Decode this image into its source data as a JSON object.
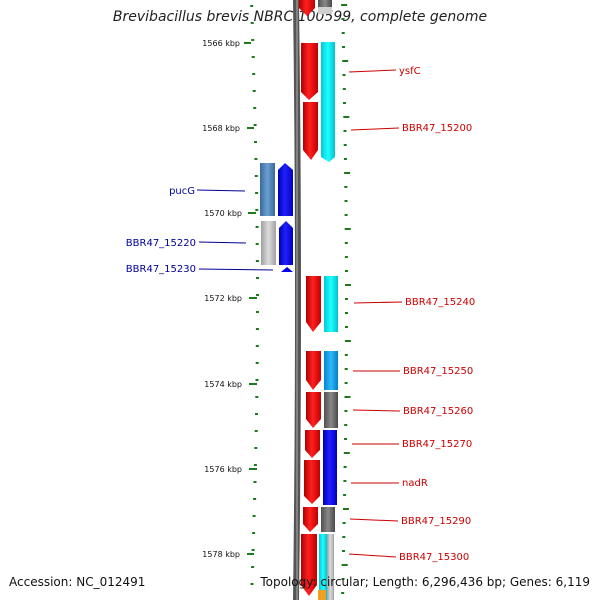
{
  "title": "Brevibacillus brevis NBRC 100599, complete genome",
  "accession": "Accession: NC_012491",
  "summary": "Topology: circular; Length: 6,296,436 bp; Genes: 6,119",
  "kbp_ticks": [
    "1566 kbp",
    "1568 kbp",
    "1570 kbp",
    "1572 kbp",
    "1574 kbp",
    "1576 kbp",
    "1578 kbp"
  ],
  "colors": {
    "forward": "#e8000a",
    "reverse": "#0000f0",
    "label_forward": "#cc0000",
    "label_reverse": "#000099",
    "backbone": "#777777",
    "tick": "#1b7a1b"
  },
  "genes_right": [
    {
      "label": "ysfC"
    },
    {
      "label": "BBR47_15200"
    },
    {
      "label": "BBR47_15240"
    },
    {
      "label": "BBR47_15250"
    },
    {
      "label": "BBR47_15260"
    },
    {
      "label": "BBR47_15270"
    },
    {
      "label": "nadR"
    },
    {
      "label": "BBR47_15290"
    },
    {
      "label": "BBR47_15300"
    }
  ],
  "genes_left": [
    {
      "label": "pucG"
    },
    {
      "label": "BBR47_15220"
    },
    {
      "label": "BBR47_15230"
    }
  ]
}
